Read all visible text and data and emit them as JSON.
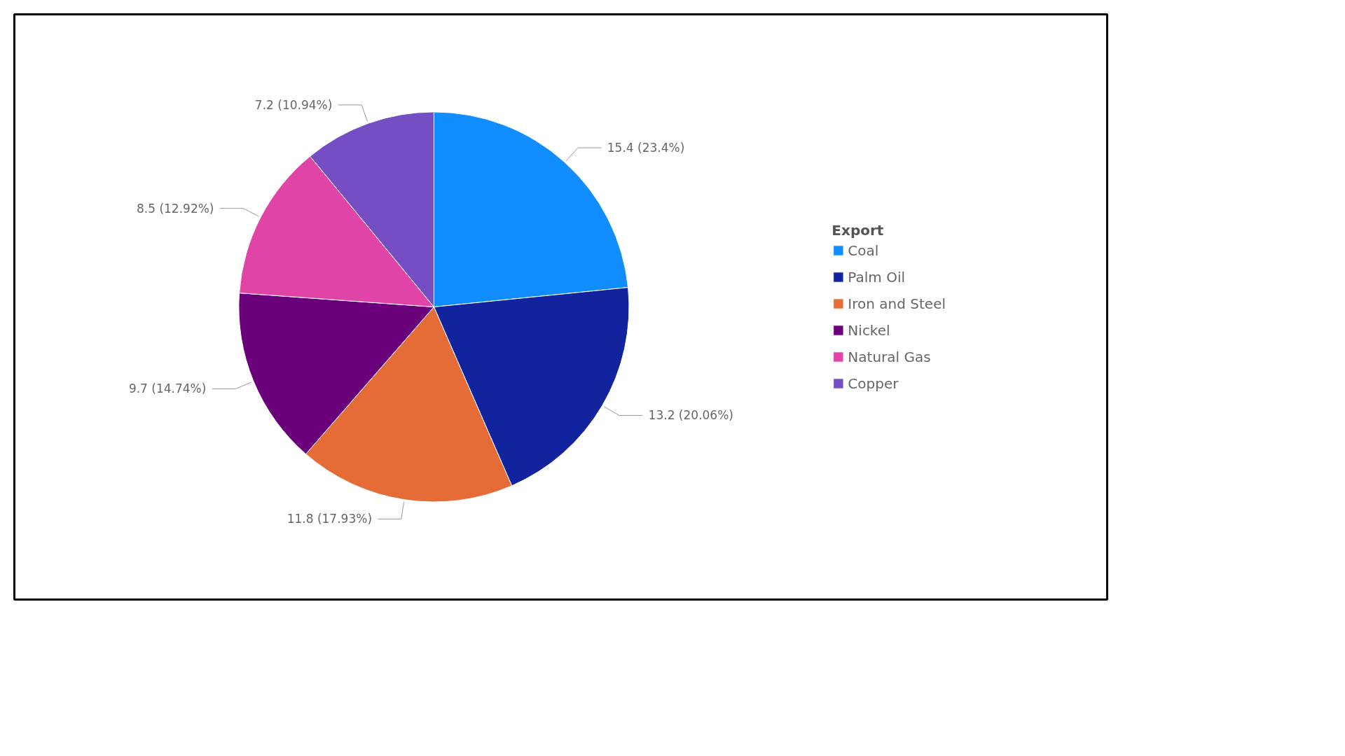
{
  "chart_data": {
    "type": "pie",
    "legend_title": "Export",
    "legend": "right",
    "categories": [
      "Coal",
      "Palm Oil",
      "Iron and Steel",
      "Nickel",
      "Natural Gas",
      "Copper"
    ],
    "values": [
      15.4,
      13.2,
      11.8,
      9.7,
      8.5,
      7.2
    ],
    "colors": [
      "#118dff",
      "#12239e",
      "#e66c37",
      "#6b007b",
      "#e044a7",
      "#744ec2"
    ],
    "value_labels": [
      "15.4 (23.4%)",
      "13.2 (20.06%)",
      "11.8 (17.93%)",
      "9.7 (14.74%)",
      "8.5 (12.92%)",
      "7.2 (10.94%)"
    ]
  }
}
